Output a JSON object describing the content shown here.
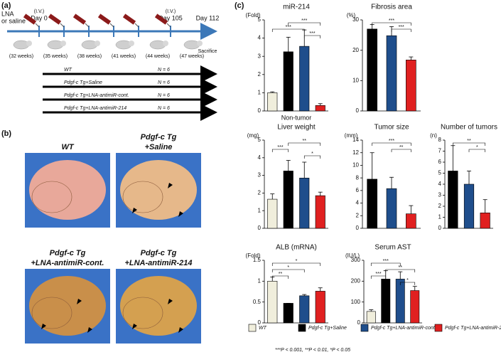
{
  "panels": {
    "a": "(a)",
    "b": "(b)",
    "c": "(c)"
  },
  "timeline": {
    "lna": "LNA",
    "or_saline": "or saline",
    "iv_start": "(I.V.)",
    "day_start": "Day 0",
    "iv_end": "(I.V.)",
    "day_end": "Day 105",
    "day_last": "Day 112",
    "sacrifice": "Sacrifice",
    "weeks": [
      "(32 weeks)",
      "(35 weeks)",
      "(38 weeks)",
      "(41 weeks)",
      "(44 weeks)",
      "(47 weeks)"
    ],
    "groups": [
      {
        "name": "WT",
        "n": "N = 6"
      },
      {
        "name": "Pdgf-c Tg+Saline",
        "n": "N = 6"
      },
      {
        "name": "Pdgf-c Tg+LNA-antimiR-cont.",
        "n": "N = 6"
      },
      {
        "name": "Pdgf-c Tg+LNA-antimiR-214",
        "n": "N = 6"
      }
    ]
  },
  "photos": [
    {
      "lines": [
        "WT"
      ]
    },
    {
      "lines": [
        "Pdgf-c Tg",
        "+Saline"
      ]
    },
    {
      "lines": [
        "Pdgf-c Tg",
        "+LNA-antimiR-cont."
      ]
    },
    {
      "lines": [
        "Pdgf-c Tg",
        "+LNA-antimiR-214"
      ]
    }
  ],
  "legend": [
    {
      "name": "WT",
      "color": "#f0eedc"
    },
    {
      "name": "Pdgf-c Tg+Saline",
      "color": "#000000"
    },
    {
      "name": "Pdgf-c Tg+LNA-antimiR-cont.",
      "color": "#1f4e8c"
    },
    {
      "name": "Pdgf-c Tg+LNA-antimiR-214",
      "color": "#e02020"
    }
  ],
  "footnote": "***P < 0.001, **P < 0.01, *P < 0.05",
  "chart_data": [
    {
      "type": "bar",
      "title": "miR-214",
      "ylabel": "(Fold)",
      "xlabel": "Non-tumor",
      "values": [
        1.0,
        3.25,
        3.55,
        0.3
      ],
      "errors": [
        0.05,
        0.8,
        0.9,
        0.1
      ],
      "colors": [
        "#f0eedc",
        "#000000",
        "#1f4e8c",
        "#e02020"
      ],
      "ylim": [
        0,
        5
      ],
      "yticks": [
        0,
        1,
        2,
        3,
        4,
        5
      ],
      "brackets": [
        {
          "from": 1,
          "to": 3,
          "label": "***"
        },
        {
          "from": 0,
          "to": 2,
          "label": "***"
        },
        {
          "from": 2,
          "to": 3,
          "label": "***"
        }
      ]
    },
    {
      "type": "bar",
      "title": "Fibrosis area",
      "ylabel": "(%)",
      "values": [
        27,
        24.8,
        16.8
      ],
      "errors": [
        1.5,
        3,
        1
      ],
      "colors": [
        "#000000",
        "#1f4e8c",
        "#e02020"
      ],
      "ylim": [
        0,
        30
      ],
      "yticks": [
        0,
        10,
        20,
        30
      ],
      "brackets": [
        {
          "from": 0,
          "to": 2,
          "label": "***"
        },
        {
          "from": 1,
          "to": 2,
          "label": "***"
        }
      ]
    },
    {
      "type": "bar",
      "title": "Liver weight",
      "ylabel": "(mg)",
      "values": [
        1.65,
        3.25,
        2.85,
        1.85
      ],
      "errors": [
        0.3,
        0.6,
        0.9,
        0.2
      ],
      "colors": [
        "#f0eedc",
        "#000000",
        "#1f4e8c",
        "#e02020"
      ],
      "ylim": [
        0,
        5
      ],
      "yticks": [
        0,
        1,
        2,
        3,
        4,
        5
      ],
      "brackets": [
        {
          "from": 1,
          "to": 3,
          "label": "**"
        },
        {
          "from": 0,
          "to": 1,
          "label": "***"
        },
        {
          "from": 2,
          "to": 3,
          "label": "*"
        }
      ]
    },
    {
      "type": "bar",
      "title": "Tumor size",
      "ylabel": "(mm)",
      "values": [
        7.8,
        6.3,
        2.3
      ],
      "errors": [
        4.2,
        1.8,
        1.3
      ],
      "colors": [
        "#000000",
        "#1f4e8c",
        "#e02020"
      ],
      "ylim": [
        0,
        14
      ],
      "yticks": [
        0,
        2,
        4,
        6,
        8,
        10,
        12,
        14
      ],
      "brackets": [
        {
          "from": 0,
          "to": 2,
          "label": "***"
        },
        {
          "from": 1,
          "to": 2,
          "label": "**"
        }
      ]
    },
    {
      "type": "bar",
      "title": "Number of tumors",
      "ylabel": "(n)",
      "values": [
        5.2,
        4.0,
        1.4
      ],
      "errors": [
        2.3,
        1.2,
        1.2
      ],
      "colors": [
        "#000000",
        "#1f4e8c",
        "#e02020"
      ],
      "ylim": [
        0,
        8
      ],
      "yticks": [
        0,
        1,
        2,
        3,
        4,
        5,
        6,
        7,
        8
      ],
      "brackets": [
        {
          "from": 0,
          "to": 2,
          "label": "**"
        },
        {
          "from": 1,
          "to": 2,
          "label": "*"
        }
      ]
    },
    {
      "type": "bar",
      "title": "ALB (mRNA)",
      "ylabel": "(Fold)",
      "values": [
        1.0,
        0.47,
        0.65,
        0.76
      ],
      "errors": [
        0.1,
        0.0,
        0.03,
        0.08
      ],
      "colors": [
        "#f0eedc",
        "#000000",
        "#1f4e8c",
        "#e02020"
      ],
      "ylim": [
        0,
        1.5
      ],
      "yticks": [
        0,
        0.5,
        1,
        1.5
      ],
      "brackets": [
        {
          "from": 0,
          "to": 3,
          "label": "*"
        },
        {
          "from": 0,
          "to": 2,
          "label": "*"
        },
        {
          "from": 0,
          "to": 1,
          "label": "**"
        }
      ]
    },
    {
      "type": "bar",
      "title": "Serum AST",
      "ylabel": "(IU/L)",
      "values": [
        55,
        210,
        210,
        155
      ],
      "errors": [
        8,
        40,
        35,
        20
      ],
      "colors": [
        "#f0eedc",
        "#000000",
        "#1f4e8c",
        "#e02020"
      ],
      "ylim": [
        0,
        300
      ],
      "yticks": [
        0,
        100,
        200,
        300
      ],
      "brackets": [
        {
          "from": 0,
          "to": 2,
          "label": "***"
        },
        {
          "from": 1,
          "to": 3,
          "label": "**"
        },
        {
          "from": 0,
          "to": 1,
          "label": "***"
        },
        {
          "from": 2,
          "to": 3,
          "label": "*"
        }
      ]
    }
  ]
}
